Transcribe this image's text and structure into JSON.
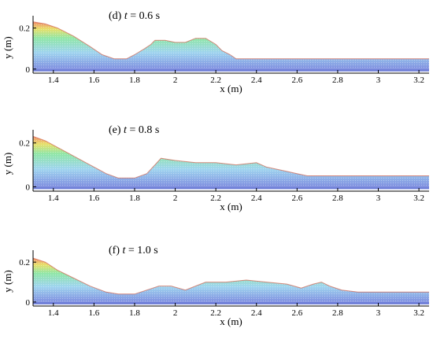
{
  "chart_data": [
    {
      "type": "area",
      "panel": "(d)",
      "time_label": "t = 0.6 s",
      "xlabel": "x (m)",
      "ylabel": "y (m)",
      "xlim": [
        1.3,
        3.25
      ],
      "ylim": [
        -0.02,
        0.26
      ],
      "xticks": [
        1.4,
        1.6,
        1.8,
        2,
        2.2,
        2.4,
        2.6,
        2.8,
        3,
        3.2
      ],
      "yticks": [
        0,
        0.2
      ],
      "grid": false,
      "surface": {
        "x": [
          1.3,
          1.36,
          1.42,
          1.5,
          1.58,
          1.64,
          1.7,
          1.76,
          1.8,
          1.85,
          1.88,
          1.9,
          1.95,
          2.0,
          2.05,
          2.1,
          2.15,
          2.2,
          2.23,
          2.27,
          2.3,
          2.5,
          3.25
        ],
        "y": [
          0.23,
          0.22,
          0.2,
          0.16,
          0.11,
          0.07,
          0.05,
          0.05,
          0.07,
          0.1,
          0.12,
          0.14,
          0.14,
          0.13,
          0.13,
          0.15,
          0.15,
          0.12,
          0.09,
          0.07,
          0.05,
          0.05,
          0.05
        ]
      }
    },
    {
      "type": "area",
      "panel": "(e)",
      "time_label": "t = 0.8 s",
      "xlabel": "x (m)",
      "ylabel": "y (m)",
      "xlim": [
        1.3,
        3.25
      ],
      "ylim": [
        -0.02,
        0.26
      ],
      "xticks": [
        1.4,
        1.6,
        1.8,
        2,
        2.2,
        2.4,
        2.6,
        2.8,
        3,
        3.2
      ],
      "yticks": [
        0,
        0.2
      ],
      "grid": false,
      "surface": {
        "x": [
          1.3,
          1.36,
          1.42,
          1.5,
          1.58,
          1.66,
          1.72,
          1.8,
          1.86,
          1.9,
          1.93,
          2.0,
          2.1,
          2.2,
          2.3,
          2.4,
          2.45,
          2.5,
          2.55,
          2.6,
          2.65,
          3.25
        ],
        "y": [
          0.23,
          0.21,
          0.18,
          0.14,
          0.1,
          0.06,
          0.04,
          0.04,
          0.06,
          0.1,
          0.13,
          0.12,
          0.11,
          0.11,
          0.1,
          0.11,
          0.09,
          0.08,
          0.07,
          0.06,
          0.05,
          0.05
        ]
      }
    },
    {
      "type": "area",
      "panel": "(f)",
      "time_label": "t = 1.0 s",
      "xlabel": "x (m)",
      "ylabel": "y (m)",
      "xlim": [
        1.3,
        3.25
      ],
      "ylim": [
        -0.02,
        0.26
      ],
      "xticks": [
        1.4,
        1.6,
        1.8,
        2,
        2.2,
        2.4,
        2.6,
        2.8,
        3,
        3.2
      ],
      "yticks": [
        0,
        0.2
      ],
      "grid": false,
      "surface": {
        "x": [
          1.3,
          1.36,
          1.42,
          1.5,
          1.58,
          1.66,
          1.72,
          1.8,
          1.86,
          1.92,
          1.98,
          2.05,
          2.1,
          2.15,
          2.25,
          2.35,
          2.45,
          2.55,
          2.62,
          2.68,
          2.72,
          2.76,
          2.82,
          2.9,
          3.25
        ],
        "y": [
          0.22,
          0.2,
          0.16,
          0.12,
          0.08,
          0.05,
          0.04,
          0.04,
          0.06,
          0.08,
          0.08,
          0.06,
          0.08,
          0.1,
          0.1,
          0.11,
          0.1,
          0.09,
          0.07,
          0.09,
          0.1,
          0.08,
          0.06,
          0.05,
          0.05
        ]
      }
    }
  ]
}
